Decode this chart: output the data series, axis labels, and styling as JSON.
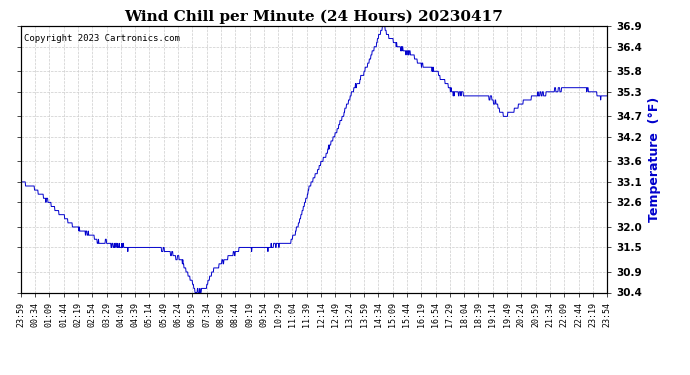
{
  "title": "Wind Chill per Minute (24 Hours) 20230417",
  "ylabel": "Temperature  (°F)",
  "copyright_text": "Copyright 2023 Cartronics.com",
  "title_color": "#000000",
  "line_color": "#0000CC",
  "ylabel_color": "#0000CC",
  "background_color": "#ffffff",
  "grid_color": "#cccccc",
  "ylim": [
    30.4,
    36.9
  ],
  "yticks": [
    30.4,
    30.9,
    31.5,
    32.0,
    32.6,
    33.1,
    33.6,
    34.2,
    34.7,
    35.3,
    35.8,
    36.4,
    36.9
  ],
  "x_labels": [
    "23:59",
    "00:34",
    "01:09",
    "01:44",
    "02:19",
    "02:54",
    "03:29",
    "04:04",
    "04:39",
    "05:14",
    "05:49",
    "06:24",
    "06:59",
    "07:34",
    "08:09",
    "08:44",
    "09:19",
    "09:54",
    "10:29",
    "11:04",
    "11:39",
    "12:14",
    "12:49",
    "13:24",
    "13:59",
    "14:34",
    "15:09",
    "15:44",
    "16:19",
    "16:54",
    "17:29",
    "18:04",
    "18:39",
    "19:14",
    "19:49",
    "20:24",
    "20:59",
    "21:34",
    "22:09",
    "22:44",
    "23:19",
    "23:54"
  ],
  "keypoints_x": [
    0,
    30,
    70,
    120,
    200,
    270,
    340,
    395,
    430,
    455,
    470,
    500,
    540,
    580,
    610,
    640,
    660,
    680,
    710,
    740,
    770,
    810,
    845,
    870,
    890,
    905,
    930,
    960,
    990,
    1020,
    1060,
    1100,
    1150,
    1190,
    1230,
    1260,
    1300,
    1340,
    1380,
    1420,
    1440
  ],
  "keypoints_y": [
    33.1,
    33.0,
    32.6,
    32.1,
    31.6,
    31.5,
    31.5,
    31.2,
    30.4,
    30.55,
    30.9,
    31.2,
    31.5,
    31.5,
    31.5,
    31.6,
    31.6,
    32.0,
    33.0,
    33.6,
    34.2,
    35.2,
    35.8,
    36.4,
    36.9,
    36.6,
    36.4,
    36.2,
    35.9,
    35.8,
    35.3,
    35.2,
    35.2,
    34.7,
    35.0,
    35.2,
    35.3,
    35.4,
    35.4,
    35.2,
    35.2
  ]
}
